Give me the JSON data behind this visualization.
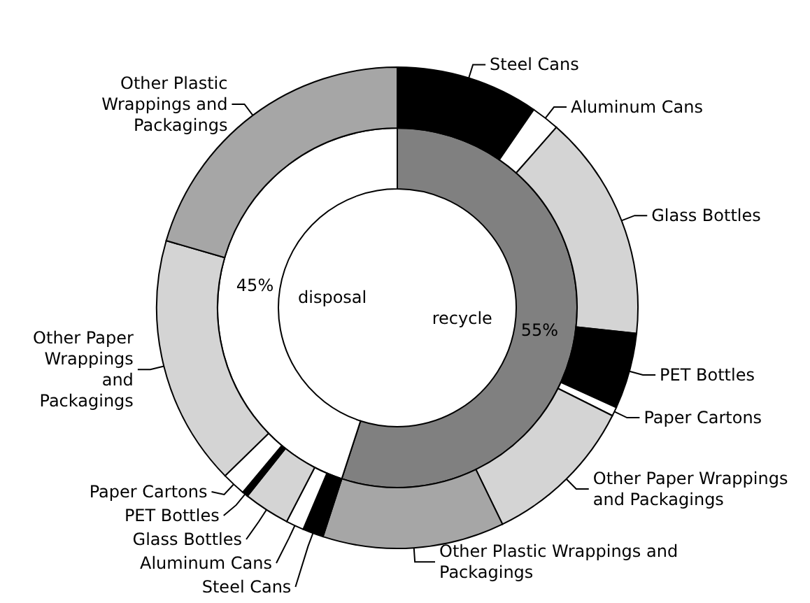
{
  "chart_data": [
    {
      "type": "donut",
      "categories": [
        "recycle",
        "disposal"
      ],
      "values": [
        55,
        45
      ],
      "colors": [
        "#808080",
        "#ffffff"
      ],
      "value_labels": [
        "55%",
        "45%"
      ]
    },
    {
      "type": "donut",
      "categories": [
        "Steel Cans",
        "Aluminum Cans",
        "Glass Bottles",
        "PET Bottles",
        "Paper Cartons",
        "Other Paper Wrappings and Packagings",
        "Other Plastic Wrappings and Packagings",
        "Steel Cans",
        "Aluminum Cans",
        "Glass Bottles",
        "PET Bottles",
        "Paper Cartons",
        "Other Paper Wrappings and Packagings",
        "Other Plastic Wrappings and Packagings"
      ],
      "values": [
        9.6,
        1.9,
        15.2,
        5.1,
        0.6,
        10.4,
        12.2,
        1.4,
        1.2,
        3.1,
        0.4,
        1.6,
        16.8,
        20.5
      ],
      "colors": [
        "#000000",
        "#ffffff",
        "#d4d4d4",
        "#000000",
        "#ffffff",
        "#d4d4d4",
        "#a6a6a6",
        "#000000",
        "#ffffff",
        "#d4d4d4",
        "#000000",
        "#ffffff",
        "#d4d4d4",
        "#a6a6a6"
      ]
    }
  ]
}
